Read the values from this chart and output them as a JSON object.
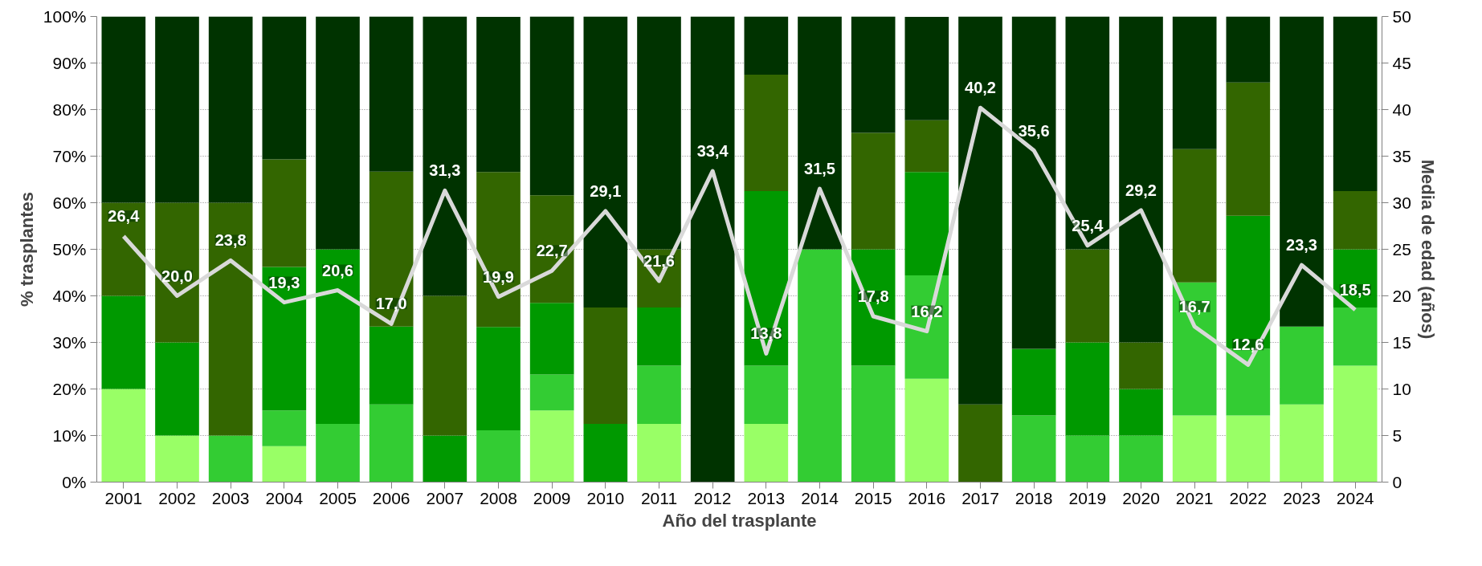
{
  "chart_data": {
    "type": "bar",
    "stacked": true,
    "xlabel": "Año del trasplante",
    "ylabel": "% trasplantes",
    "y2label": "Media de edad (años)",
    "categories": [
      "2001",
      "2002",
      "2003",
      "2004",
      "2005",
      "2006",
      "2007",
      "2008",
      "2009",
      "2010",
      "2011",
      "2012",
      "2013",
      "2014",
      "2015",
      "2016",
      "2017",
      "2018",
      "2019",
      "2020",
      "2021",
      "2022",
      "2023",
      "2024"
    ],
    "series": [
      {
        "color": "#99ff66",
        "values": [
          20,
          10,
          null,
          7.7,
          null,
          null,
          null,
          null,
          15.4,
          null,
          12.5,
          null,
          12.5,
          null,
          null,
          22.2,
          null,
          null,
          null,
          null,
          14.3,
          14.3,
          16.7,
          25
        ]
      },
      {
        "color": "#33cc33",
        "values": [
          null,
          null,
          10,
          7.7,
          12.5,
          16.7,
          null,
          11.1,
          7.7,
          null,
          12.5,
          null,
          12.5,
          50,
          25,
          22.2,
          null,
          14.3,
          10,
          10,
          28.6,
          14.3,
          16.7,
          12.5
        ]
      },
      {
        "color": "#009900",
        "values": [
          20,
          20,
          null,
          30.8,
          37.5,
          16.7,
          10,
          22.2,
          15.4,
          12.5,
          12.5,
          null,
          37.5,
          null,
          25,
          22.2,
          null,
          14.3,
          20,
          10,
          null,
          28.6,
          null,
          12.5
        ]
      },
      {
        "color": "#336600",
        "values": [
          20,
          30,
          50,
          23.1,
          null,
          33.3,
          30,
          33.3,
          23.1,
          25,
          12.5,
          null,
          25,
          null,
          25,
          11.1,
          16.7,
          null,
          20,
          10,
          28.6,
          28.6,
          null,
          12.5
        ]
      },
      {
        "color": "#003300",
        "values": [
          40,
          40,
          40,
          30.8,
          50,
          33.3,
          60,
          33.3,
          38.5,
          62.5,
          50,
          100,
          12.5,
          50,
          25,
          22.2,
          83.3,
          71.4,
          50,
          70,
          28.6,
          14.3,
          66.7,
          37.5
        ]
      },
      {
        "type": "line",
        "axis": "y2",
        "color": "#d9d9d9",
        "data_labels": true,
        "values": [
          26.4,
          20.0,
          23.8,
          19.3,
          20.6,
          17.0,
          31.3,
          19.9,
          22.7,
          29.1,
          21.6,
          33.4,
          13.8,
          31.5,
          17.8,
          16.2,
          40.2,
          35.6,
          25.4,
          29.2,
          16.7,
          12.6,
          23.3,
          18.5
        ],
        "value_labels": [
          "26,4",
          "20,0",
          "23,8",
          "19,3",
          "20,6",
          "17,0",
          "31,3",
          "19,9",
          "22,7",
          "29,1",
          "21,6",
          "33,4",
          "13,8",
          "31,5",
          "17,8",
          "16,2",
          "40,2",
          "35,6",
          "25,4",
          "29,2",
          "16,7",
          "12,6",
          "23,3",
          "18,5"
        ]
      }
    ],
    "ylim": [
      0,
      100
    ],
    "yticks": [
      {
        "value": 0,
        "label": "0%"
      },
      {
        "value": 10,
        "label": "10%"
      },
      {
        "value": 20,
        "label": "20%"
      },
      {
        "value": 30,
        "label": "30%"
      },
      {
        "value": 40,
        "label": "40%"
      },
      {
        "value": 50,
        "label": "50%"
      },
      {
        "value": 60,
        "label": "60%"
      },
      {
        "value": 70,
        "label": "70%"
      },
      {
        "value": 80,
        "label": "80%"
      },
      {
        "value": 90,
        "label": "90%"
      },
      {
        "value": 100,
        "label": "100%"
      }
    ],
    "y2lim": [
      0,
      50
    ],
    "y2ticks": [
      0,
      5,
      10,
      15,
      20,
      25,
      30,
      35,
      40,
      45,
      50
    ],
    "grid": "y",
    "marker": "none",
    "line_style": "solid"
  }
}
